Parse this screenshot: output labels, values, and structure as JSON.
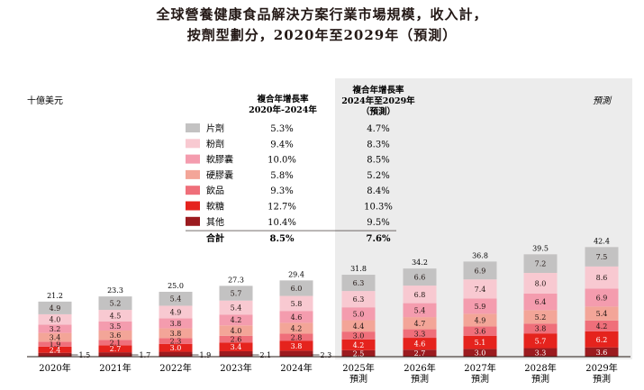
{
  "title_lines": [
    "全球營養健康食品解決方案行業市場規模，收入計，",
    "按劑型劃分，2020年至2029年（預測）"
  ],
  "unit_label": "十億美元",
  "forecast_label": "預測",
  "cagr_headers": {
    "hist": [
      "複合年增長率",
      "2020年-2024年"
    ],
    "fore": [
      "複合年增長率",
      "2024年至2029年",
      "（預測）"
    ]
  },
  "total_label": "合計",
  "total_cagr": {
    "hist": "8.5%",
    "fore": "7.6%"
  },
  "colors": {
    "forecast_bg": "#ececec",
    "baseline": "#231815"
  },
  "chart_data": {
    "type": "bar",
    "stacked": true,
    "categories": [
      [
        "2020年"
      ],
      [
        "2021年"
      ],
      [
        "2022年"
      ],
      [
        "2023年"
      ],
      [
        "2024年"
      ],
      [
        "2025年",
        "預測"
      ],
      [
        "2026年",
        "預測"
      ],
      [
        "2027年",
        "預測"
      ],
      [
        "2028年",
        "預測"
      ],
      [
        "2029年",
        "預測"
      ]
    ],
    "totals": [
      21.2,
      23.3,
      25.0,
      27.3,
      29.4,
      31.8,
      34.2,
      36.8,
      39.5,
      42.4
    ],
    "series": [
      {
        "name": "其他",
        "color": "#9b1b1f",
        "values": [
          1.5,
          1.7,
          1.9,
          2.1,
          2.3,
          2.5,
          2.7,
          3.0,
          3.3,
          3.6
        ],
        "label_outside_through": 4,
        "cagr_hist": "10.4%",
        "cagr_fore": "9.5%"
      },
      {
        "name": "軟糖",
        "color": "#e5231d",
        "values": [
          2.4,
          2.7,
          3.0,
          3.4,
          3.8,
          4.2,
          4.6,
          5.1,
          5.7,
          6.2
        ],
        "cagr_hist": "12.7%",
        "cagr_fore": "10.3%"
      },
      {
        "name": "飲品",
        "color": "#ef6f7a",
        "values": [
          1.9,
          2.1,
          2.3,
          2.6,
          2.8,
          3.0,
          3.3,
          3.6,
          3.8,
          4.2
        ],
        "cagr_hist": "9.3%",
        "cagr_fore": "8.4%"
      },
      {
        "name": "硬膠囊",
        "color": "#f3a598",
        "values": [
          3.4,
          3.6,
          3.8,
          4.0,
          4.2,
          4.4,
          4.7,
          4.9,
          5.2,
          5.4
        ],
        "cagr_hist": "5.8%",
        "cagr_fore": "5.2%"
      },
      {
        "name": "軟膠囊",
        "color": "#f49cae",
        "values": [
          3.2,
          3.5,
          3.8,
          4.2,
          4.6,
          5.0,
          5.4,
          5.9,
          6.4,
          6.9
        ],
        "cagr_hist": "10.0%",
        "cagr_fore": "8.5%"
      },
      {
        "name": "粉劑",
        "color": "#f8c9d1",
        "values": [
          4.0,
          4.5,
          4.9,
          5.4,
          5.8,
          6.3,
          6.8,
          7.4,
          8.0,
          8.6
        ],
        "cagr_hist": "9.4%",
        "cagr_fore": "8.3%"
      },
      {
        "name": "片劑",
        "color": "#c3c2c2",
        "values": [
          4.9,
          5.2,
          5.4,
          5.7,
          6.0,
          6.3,
          6.6,
          6.9,
          7.2,
          7.5
        ],
        "cagr_hist": "5.3%",
        "cagr_fore": "4.7%"
      }
    ],
    "forecast_from_index": 5,
    "ylim": [
      0,
      45
    ]
  }
}
